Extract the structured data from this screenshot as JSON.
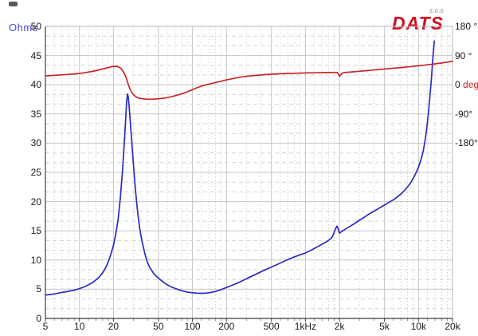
{
  "logo": {
    "text": "DATS",
    "version": "3.0.0",
    "color": "#d01020"
  },
  "labels": {
    "y_left_title": "Ohms",
    "y_left_title_color": "#4a4ad0"
  },
  "chart_data": {
    "type": "line",
    "title": "",
    "x_scale": "log",
    "x_range": [
      5,
      20000
    ],
    "x_ticks": [
      [
        "5",
        5
      ],
      [
        "10",
        10
      ],
      [
        "20",
        20
      ],
      [
        "50",
        50
      ],
      [
        "100",
        100
      ],
      [
        "200",
        200
      ],
      [
        "500",
        500
      ],
      [
        "1kHz",
        1000
      ],
      [
        "2k",
        2000
      ],
      [
        "5k",
        5000
      ],
      [
        "10k",
        10000
      ],
      [
        "20k",
        20000
      ]
    ],
    "x_minor_ticks": [
      6,
      7,
      8,
      9,
      12,
      14,
      16,
      18,
      30,
      40,
      60,
      70,
      80,
      90,
      120,
      140,
      160,
      180,
      300,
      400,
      600,
      700,
      800,
      900,
      1200,
      1400,
      1600,
      1800,
      3000,
      4000,
      6000,
      7000,
      8000,
      9000,
      12000,
      14000,
      16000,
      18000
    ],
    "y_left": {
      "label": "Ohms",
      "range": [
        0,
        50
      ],
      "major_step": 5,
      "minor_divisions": 3,
      "tick_labels": [
        "50",
        "45",
        "40",
        "35",
        "30",
        "25",
        "20",
        "15",
        "10",
        "5",
        "0"
      ]
    },
    "y_right": {
      "ohm_equiv_of_zero_deg": 40,
      "deg_per_5_ohm": 90,
      "labels": [
        {
          "text": "180 °",
          "deg": 180,
          "color": "#1a1a1a"
        },
        {
          "text": "90 °",
          "deg": 90,
          "color": "#1a1a1a"
        },
        {
          "text": "0 ",
          "deg": 0,
          "color": "#1a1a1a",
          "suffix": "deg",
          "suffix_color": "#c62828"
        },
        {
          "text": "-90°",
          "deg": -90,
          "color": "#1a1a1a"
        },
        {
          "text": "-180°",
          "deg": -180,
          "color": "#1a1a1a"
        }
      ]
    },
    "grid": {
      "major_color": "#c6c6c6",
      "minor_color": "#d4d4d4",
      "spine_dark": "#3c3c3c",
      "spine_light": "#b5b5b5"
    },
    "series": [
      {
        "name": "impedance",
        "unit": "Ohms",
        "axis": "left",
        "color": "#2b2bc0",
        "points": [
          [
            5,
            4.0
          ],
          [
            5.5,
            4.1
          ],
          [
            6,
            4.2
          ],
          [
            7,
            4.45
          ],
          [
            8,
            4.65
          ],
          [
            9,
            4.85
          ],
          [
            10,
            5.1
          ],
          [
            11,
            5.4
          ],
          [
            12,
            5.75
          ],
          [
            13,
            6.1
          ],
          [
            14,
            6.6
          ],
          [
            15,
            7.1
          ],
          [
            16,
            7.8
          ],
          [
            17,
            8.6
          ],
          [
            18,
            9.7
          ],
          [
            19,
            11.0
          ],
          [
            20,
            12.5
          ],
          [
            21,
            14.5
          ],
          [
            22,
            17.0
          ],
          [
            23,
            20.5
          ],
          [
            24,
            25.0
          ],
          [
            25,
            30.5
          ],
          [
            25.7,
            34.5
          ],
          [
            26.2,
            37.2
          ],
          [
            26.6,
            38.4
          ],
          [
            27,
            38.0
          ],
          [
            27.5,
            36.5
          ],
          [
            28,
            34.5
          ],
          [
            29,
            30.5
          ],
          [
            30,
            26.5
          ],
          [
            31,
            23.0
          ],
          [
            32,
            20.0
          ],
          [
            33,
            17.6
          ],
          [
            34,
            15.7
          ],
          [
            35,
            14.2
          ],
          [
            36,
            13.0
          ],
          [
            38,
            11.0
          ],
          [
            40,
            9.6
          ],
          [
            42,
            8.7
          ],
          [
            45,
            7.8
          ],
          [
            48,
            7.2
          ],
          [
            50,
            6.9
          ],
          [
            55,
            6.25
          ],
          [
            60,
            5.75
          ],
          [
            65,
            5.4
          ],
          [
            70,
            5.15
          ],
          [
            75,
            4.95
          ],
          [
            80,
            4.75
          ],
          [
            90,
            4.5
          ],
          [
            100,
            4.4
          ],
          [
            110,
            4.32
          ],
          [
            120,
            4.3
          ],
          [
            130,
            4.32
          ],
          [
            140,
            4.4
          ],
          [
            150,
            4.5
          ],
          [
            160,
            4.62
          ],
          [
            180,
            4.95
          ],
          [
            200,
            5.3
          ],
          [
            220,
            5.6
          ],
          [
            250,
            6.05
          ],
          [
            280,
            6.5
          ],
          [
            300,
            6.8
          ],
          [
            350,
            7.4
          ],
          [
            400,
            7.95
          ],
          [
            450,
            8.4
          ],
          [
            500,
            8.8
          ],
          [
            550,
            9.15
          ],
          [
            600,
            9.5
          ],
          [
            700,
            10.1
          ],
          [
            800,
            10.55
          ],
          [
            900,
            10.9
          ],
          [
            1000,
            11.2
          ],
          [
            1100,
            11.6
          ],
          [
            1200,
            12.0
          ],
          [
            1300,
            12.35
          ],
          [
            1400,
            12.7
          ],
          [
            1500,
            13.0
          ],
          [
            1600,
            13.35
          ],
          [
            1700,
            13.8
          ],
          [
            1750,
            14.2
          ],
          [
            1800,
            14.8
          ],
          [
            1850,
            15.4
          ],
          [
            1900,
            15.8
          ],
          [
            1950,
            15.3
          ],
          [
            2000,
            14.6
          ],
          [
            2050,
            14.75
          ],
          [
            2100,
            14.9
          ],
          [
            2200,
            15.15
          ],
          [
            2300,
            15.4
          ],
          [
            2500,
            15.8
          ],
          [
            2700,
            16.2
          ],
          [
            3000,
            16.8
          ],
          [
            3300,
            17.3
          ],
          [
            3600,
            17.8
          ],
          [
            4000,
            18.3
          ],
          [
            4500,
            18.9
          ],
          [
            5000,
            19.4
          ],
          [
            5500,
            19.9
          ],
          [
            6000,
            20.3
          ],
          [
            6500,
            20.8
          ],
          [
            7000,
            21.3
          ],
          [
            7500,
            21.9
          ],
          [
            8000,
            22.5
          ],
          [
            8500,
            23.2
          ],
          [
            9000,
            24.0
          ],
          [
            9500,
            24.9
          ],
          [
            10000,
            25.9
          ],
          [
            10500,
            27.1
          ],
          [
            11000,
            28.6
          ],
          [
            11500,
            30.7
          ],
          [
            12000,
            33.5
          ],
          [
            12500,
            37.0
          ],
          [
            13000,
            41.0
          ],
          [
            13400,
            44.5
          ],
          [
            13800,
            47.5
          ]
        ]
      },
      {
        "name": "phase",
        "unit": "deg",
        "axis": "right",
        "color": "#c62828",
        "points": [
          [
            5,
            27
          ],
          [
            6,
            29
          ],
          [
            7,
            30.5
          ],
          [
            8,
            32
          ],
          [
            9,
            33.5
          ],
          [
            10,
            35
          ],
          [
            11,
            37
          ],
          [
            12,
            39
          ],
          [
            13,
            41
          ],
          [
            14,
            43.5
          ],
          [
            15,
            46
          ],
          [
            16,
            48.5
          ],
          [
            17,
            51
          ],
          [
            18,
            53
          ],
          [
            19,
            55
          ],
          [
            20,
            56.5
          ],
          [
            21,
            57
          ],
          [
            22,
            55.5
          ],
          [
            23,
            52
          ],
          [
            24,
            45
          ],
          [
            25,
            34
          ],
          [
            26,
            20
          ],
          [
            26.6,
            9
          ],
          [
            27,
            2
          ],
          [
            27.5,
            -6
          ],
          [
            28,
            -13
          ],
          [
            29,
            -23
          ],
          [
            30,
            -30
          ],
          [
            31,
            -34.5
          ],
          [
            32,
            -38
          ],
          [
            34,
            -41.5
          ],
          [
            36,
            -43
          ],
          [
            38,
            -44
          ],
          [
            40,
            -44.5
          ],
          [
            43,
            -44.5
          ],
          [
            46,
            -44
          ],
          [
            50,
            -43
          ],
          [
            55,
            -41.5
          ],
          [
            60,
            -39.5
          ],
          [
            65,
            -37
          ],
          [
            70,
            -34
          ],
          [
            75,
            -31
          ],
          [
            80,
            -28
          ],
          [
            85,
            -25
          ],
          [
            90,
            -22
          ],
          [
            100,
            -15
          ],
          [
            110,
            -9
          ],
          [
            120,
            -4
          ],
          [
            130,
            -1
          ],
          [
            140,
            2
          ],
          [
            160,
            7
          ],
          [
            180,
            11
          ],
          [
            200,
            15
          ],
          [
            220,
            18
          ],
          [
            250,
            22
          ],
          [
            280,
            24.5
          ],
          [
            300,
            26
          ],
          [
            350,
            28.5
          ],
          [
            400,
            30
          ],
          [
            450,
            31.5
          ],
          [
            500,
            32.5
          ],
          [
            600,
            34
          ],
          [
            700,
            35
          ],
          [
            800,
            35.5
          ],
          [
            900,
            36
          ],
          [
            1000,
            36.5
          ],
          [
            1200,
            37
          ],
          [
            1400,
            37.3
          ],
          [
            1600,
            37.6
          ],
          [
            1800,
            37.8
          ],
          [
            1900,
            38
          ],
          [
            1950,
            34
          ],
          [
            2000,
            26
          ],
          [
            2050,
            31
          ],
          [
            2100,
            35.5
          ],
          [
            2200,
            37.5
          ],
          [
            2400,
            38.5
          ],
          [
            2700,
            40
          ],
          [
            3000,
            41.5
          ],
          [
            3500,
            43.5
          ],
          [
            4000,
            45.5
          ],
          [
            4500,
            47
          ],
          [
            5000,
            48.5
          ],
          [
            6000,
            51
          ],
          [
            7000,
            53
          ],
          [
            8000,
            55
          ],
          [
            9000,
            56.5
          ],
          [
            10000,
            58.5
          ],
          [
            11000,
            60
          ],
          [
            12000,
            61.5
          ],
          [
            13000,
            63
          ],
          [
            14000,
            64.5
          ],
          [
            15000,
            66
          ],
          [
            16000,
            67
          ],
          [
            17000,
            68.5
          ],
          [
            18000,
            69.5
          ],
          [
            19000,
            71
          ],
          [
            20000,
            72.5
          ]
        ]
      }
    ]
  }
}
